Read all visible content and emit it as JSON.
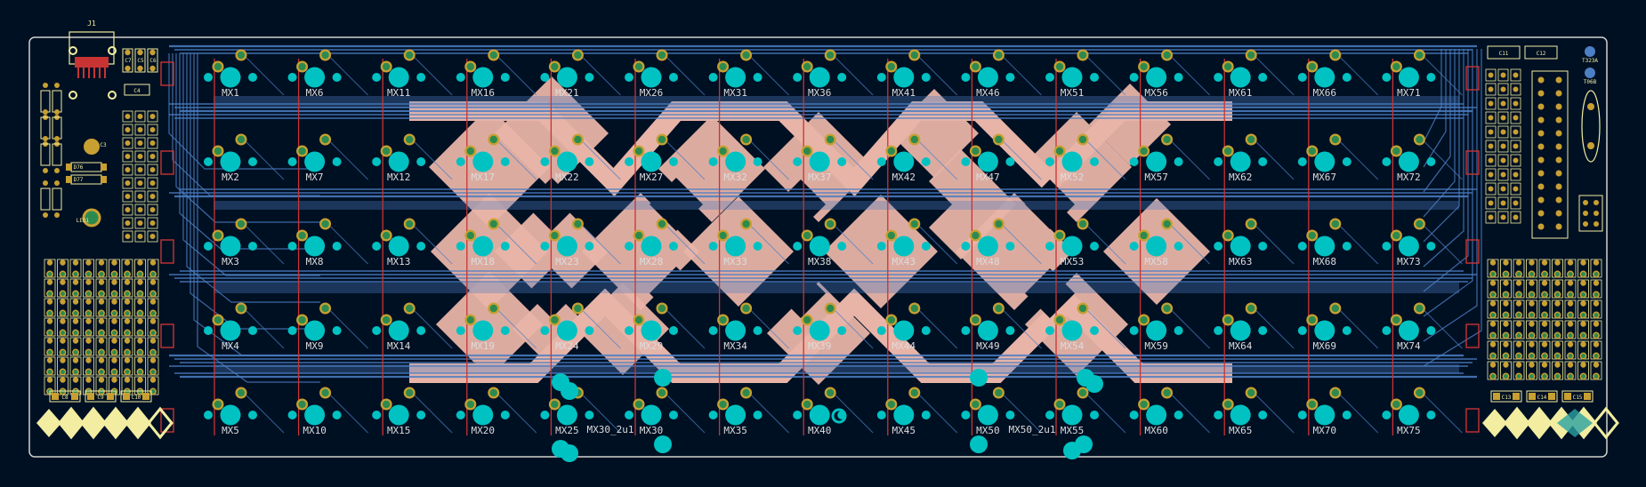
{
  "viewer": {
    "background_color": "#001023",
    "board_outline_color": "#d0d2cd",
    "copper_front_color": "#c83434",
    "copper_back_color": "#4d7fc4",
    "pad_color": "#00c2c2",
    "silkscreen_color": "#f2eda1",
    "fill_color": "#e8b4a8",
    "label_color": "#dcdcdc"
  },
  "board": {
    "connector_label": "J1",
    "switch_labels": [
      [
        "MX1",
        "MX6",
        "MX11",
        "MX16",
        "MX21",
        "MX26",
        "MX31",
        "MX36",
        "MX41",
        "MX46",
        "MX51",
        "MX56",
        "MX61",
        "MX66",
        "MX71"
      ],
      [
        "MX2",
        "MX7",
        "MX12",
        "MX17",
        "MX22",
        "MX27",
        "MX32",
        "MX37",
        "MX42",
        "MX47",
        "MX52",
        "MX57",
        "MX62",
        "MX67",
        "MX72"
      ],
      [
        "MX3",
        "MX8",
        "MX13",
        "MX18",
        "MX23",
        "MX28",
        "MX33",
        "MX38",
        "MX43",
        "MX48",
        "MX53",
        "MX58",
        "MX63",
        "MX68",
        "MX73"
      ],
      [
        "MX4",
        "MX9",
        "MX14",
        "MX19",
        "MX24",
        "MX29",
        "MX34",
        "MX39",
        "MX44",
        "MX49",
        "MX54",
        "MX59",
        "MX64",
        "MX69",
        "MX74"
      ],
      [
        "MX5",
        "MX10",
        "MX15",
        "MX20",
        "MX25",
        "MX30",
        "MX35",
        "MX40",
        "MX45",
        "MX50",
        "MX55",
        "MX60",
        "MX65",
        "MX70",
        "MX75"
      ]
    ],
    "alt_switch_labels": [
      "MX30_2u1",
      "MX50_2u1"
    ],
    "left_components": [
      "C7",
      "C5",
      "C6",
      "C4",
      "C3",
      "D76",
      "D77",
      "LED1",
      "C8",
      "C9",
      "C10"
    ],
    "right_components": [
      "C11",
      "C12",
      "T323A",
      "T06B",
      "C13",
      "C14",
      "C15"
    ]
  }
}
